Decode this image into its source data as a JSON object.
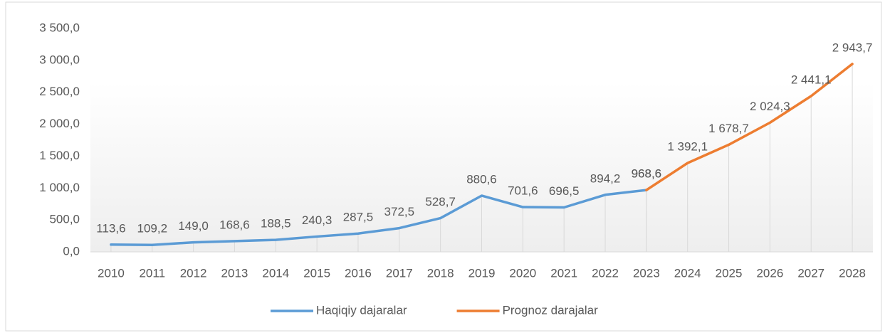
{
  "chart_data": {
    "type": "line",
    "categories": [
      "2010",
      "2011",
      "2012",
      "2013",
      "2014",
      "2015",
      "2016",
      "2017",
      "2018",
      "2019",
      "2020",
      "2021",
      "2022",
      "2023",
      "2024",
      "2025",
      "2026",
      "2027",
      "2028"
    ],
    "series": [
      {
        "name": "Haqiqiy dajaralar",
        "color": "#5b9bd5",
        "values": [
          113.6,
          109.2,
          149.0,
          168.6,
          188.5,
          240.3,
          287.5,
          372.5,
          528.7,
          880.6,
          701.6,
          696.5,
          894.2,
          968.6,
          null,
          null,
          null,
          null,
          null
        ],
        "value_labels": [
          "113,6",
          "109,2",
          "149,0",
          "168,6",
          "188,5",
          "240,3",
          "287,5",
          "372,5",
          "528,7",
          "880,6",
          "701,6",
          "696,5",
          "894,2",
          "968,6",
          null,
          null,
          null,
          null,
          null
        ]
      },
      {
        "name": "Prognoz darajalar",
        "color": "#ed7d31",
        "values": [
          null,
          null,
          null,
          null,
          null,
          null,
          null,
          null,
          null,
          null,
          null,
          null,
          null,
          968.6,
          1392.1,
          1678.7,
          2024.3,
          2441.1,
          2943.7
        ],
        "value_labels": [
          null,
          null,
          null,
          null,
          null,
          null,
          null,
          null,
          null,
          null,
          null,
          null,
          null,
          "968,6",
          "1 392,1",
          "1 678,7",
          "2 024,3",
          "2 441,1",
          "2 943,7"
        ]
      }
    ],
    "ylim": [
      0,
      3500
    ],
    "yticks": [
      {
        "value": 0,
        "label": "0,0"
      },
      {
        "value": 500,
        "label": "500,0"
      },
      {
        "value": 1000,
        "label": "1 000,0"
      },
      {
        "value": 1500,
        "label": "1 500,0"
      },
      {
        "value": 2000,
        "label": "2 000,0"
      },
      {
        "value": 2500,
        "label": "2 500,0"
      },
      {
        "value": 3000,
        "label": "3 000,0"
      },
      {
        "value": 3500,
        "label": "3 500,0"
      }
    ],
    "grid": false,
    "legend": "bottom"
  }
}
